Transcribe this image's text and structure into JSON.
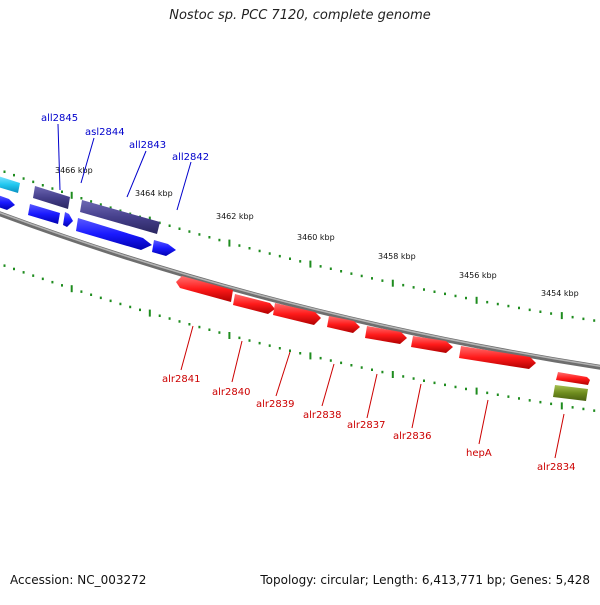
{
  "title": "Nostoc sp. PCC 7120, complete genome",
  "footer": {
    "accession": "Accession: NC_003272",
    "info": "Topology: circular; Length: 6,413,771 bp; Genes: 5,428"
  },
  "colors": {
    "background": "#ffffff",
    "backbone": "#8c8c8c",
    "tick": "#1e8c1e",
    "reverse_label": "#0000cc",
    "forward_label": "#cc0000",
    "reverse_gene": "#1a1aff",
    "reverse_cds": "#46408c",
    "reverse_light": "#22c8f0",
    "forward_gene": "#ff1a1a",
    "forward_other": "#6e8c1e"
  },
  "scale": {
    "labels": [
      "3466 kbp",
      "3464 kbp",
      "3462 kbp",
      "3460 kbp",
      "3458 kbp",
      "3456 kbp",
      "3454 kbp"
    ]
  },
  "reverse_genes": [
    {
      "name": "all2845",
      "kind": "gene"
    },
    {
      "name": "asl2844",
      "kind": "gene"
    },
    {
      "name": "all2843",
      "kind": "gene"
    },
    {
      "name": "all2842",
      "kind": "gene"
    }
  ],
  "forward_genes": [
    {
      "name": "alr2841"
    },
    {
      "name": "alr2840"
    },
    {
      "name": "alr2839"
    },
    {
      "name": "alr2838"
    },
    {
      "name": "alr2837"
    },
    {
      "name": "alr2836"
    },
    {
      "name": "hepA"
    },
    {
      "name": "alr2834"
    }
  ]
}
